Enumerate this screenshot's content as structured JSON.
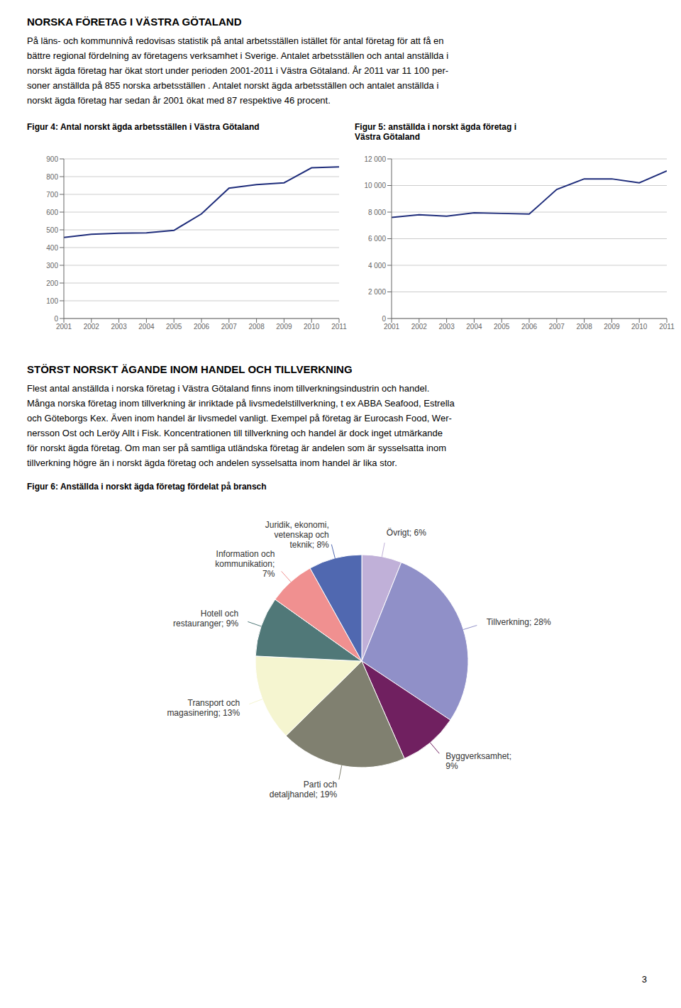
{
  "title": "NORSKA FÖRETAG I VÄSTRA GÖTALAND",
  "annotations": [
    "På läns- och kommunnivå redovisas statistik på antal arbetsställen istället för antal företag för att få en\nbättre regional fördelning av företagens verksamhet i Sverige. Antalet arbetsställen och antal anställda i\nnorskt ägda företag har ökat stort under perioden 2001-2011 i Västra Götaland. År 2011 var 11 100 per-\nsoner anställda på 855 norska arbetsställen . Antalet norskt ägda arbetsställen och antalet anställda i\nnorskt ägda företag har sedan år 2001 ökat med 87 respektive 46 procent.",
    "STÖRST NORSKT ÄGANDE INOM HANDEL OCH TILLVERKNING",
    "Flest antal anställda i norska företag i Västra Götaland finns inom tillverkningsindustrin och handel.\nMånga norska företag inom tillverkning är inriktade på livsmedelstillverkning, t ex ABBA Seafood, Estrella\noch Göteborgs Kex. Även inom handel är livsmedel vanligt. Exempel på företag är Eurocash Food, Wer-\nnersson Ost och Leröy Allt i Fisk. Koncentrationen till tillverkning och handel är dock inget utmärkande\nför norskt ägda företag. Om man ser på samtliga utländska företag är andelen som är sysselsatta inom\ntillverkning högre än i norskt ägda företag och andelen sysselsatta inom handel är lika stor.",
    "3"
  ],
  "chart_data": [
    {
      "type": "line",
      "title": "Figur 4: Antal norskt ägda arbetsställen i Västra Götaland",
      "x": [
        2001,
        2002,
        2003,
        2004,
        2005,
        2006,
        2007,
        2008,
        2009,
        2010,
        2011
      ],
      "values": [
        457,
        475,
        481,
        483,
        497,
        590,
        735,
        755,
        765,
        850,
        855
      ],
      "color": "#1F2D7B",
      "xlim": [
        2001,
        2011
      ],
      "xticks": [
        2001,
        2002,
        2003,
        2004,
        2005,
        2006,
        2007,
        2008,
        2009,
        2010,
        2011
      ],
      "ylim": [
        0,
        900
      ],
      "yticks": [
        0,
        100,
        200,
        300,
        400,
        500,
        600,
        700,
        800,
        900
      ],
      "grid": true
    },
    {
      "type": "line",
      "title": "Figur 5: anställda i norskt ägda företag i\nVästra Götaland",
      "x": [
        2001,
        2002,
        2003,
        2004,
        2005,
        2006,
        2007,
        2008,
        2009,
        2010,
        2011
      ],
      "values": [
        7600,
        7800,
        7700,
        7950,
        7900,
        7850,
        9700,
        10500,
        10500,
        10200,
        11100
      ],
      "color": "#1F2D7B",
      "xlim": [
        2001,
        2011
      ],
      "xticks": [
        2001,
        2002,
        2003,
        2004,
        2005,
        2006,
        2007,
        2008,
        2009,
        2010,
        2011
      ],
      "ylim": [
        0,
        12000
      ],
      "yticks": [
        0,
        {
          "value": 2000,
          "label": "2 000"
        },
        {
          "value": 4000,
          "label": "4 000"
        },
        {
          "value": 6000,
          "label": "6 000"
        },
        {
          "value": 8000,
          "label": "8 000"
        },
        {
          "value": 10000,
          "label": "10 000"
        },
        {
          "value": 12000,
          "label": "12 000"
        }
      ],
      "grid": true
    },
    {
      "type": "pie",
      "title": "Figur 6: Anställda i norskt ägda företag fördelat på bransch",
      "categories": [
        "Övrigt; 6%",
        "Tillverkning; 28%",
        "Byggverksamhet;\n9%",
        "Parti och\ndetaljhandel; 19%",
        "Transport och\nmagasinering; 13%",
        "Hotell och\nrestauranger; 9%",
        "Information och\nkommunikation;\n7%",
        "Juridik, ekonomi,\nvetenskap och\nteknik; 8%"
      ],
      "values": [
        6,
        28,
        9,
        19,
        13,
        9,
        7,
        8
      ],
      "colors": [
        "#C0B0D8",
        "#9090C8",
        "#702060",
        "#808070",
        "#F5F5D0",
        "#507878",
        "#F09090",
        "#5068B0"
      ]
    }
  ]
}
